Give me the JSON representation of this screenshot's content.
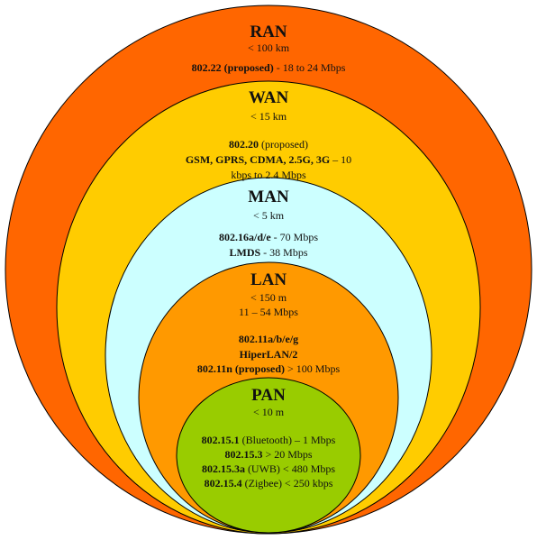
{
  "colors": {
    "ran": "#ff6600",
    "wan": "#ffcc00",
    "man": "#ccffff",
    "lan": "#ff9900",
    "pan": "#99cc00",
    "outline": "#000000"
  },
  "ran": {
    "title": "RAN",
    "range": "< 100 km",
    "std1_b": "802.22 (proposed)",
    "std1_r": " - 18 to 24 Mbps"
  },
  "wan": {
    "title": "WAN",
    "range": "< 15 km",
    "l1_b": "802.20",
    "l1_r": " (proposed)",
    "l2_b": "GSM, GPRS, CDMA, 2.5G, 3G",
    "l2_r": " – 10",
    "l3": "kbps to 2.4 Mbps"
  },
  "man": {
    "title": "MAN",
    "range": "< 5 km",
    "l1_b": "802.16a/d/e",
    "l1_r": " - 70 Mbps",
    "l2_b": "LMDS",
    "l2_r": " - 38 Mbps"
  },
  "lan": {
    "title": "LAN",
    "range": "< 150 m",
    "speed": "11 – 54 Mbps",
    "l1": "802.11a/b/e/g",
    "l2": "HiperLAN/2",
    "l3_b": "802.11n (proposed)",
    "l3_r": " > 100 Mbps"
  },
  "pan": {
    "title": "PAN",
    "range": "< 10 m",
    "l1_b": "802.15.1",
    "l1_r": " (Bluetooth) – 1 Mbps",
    "l2_b": "802.15.3",
    "l2_r": " > 20 Mbps",
    "l3_b": "802.15.3a",
    "l3_r": "  (UWB) < 480 Mbps",
    "l4_b": "802.15.4",
    "l4_r": "  (Zigbee) < 250 kbps"
  }
}
